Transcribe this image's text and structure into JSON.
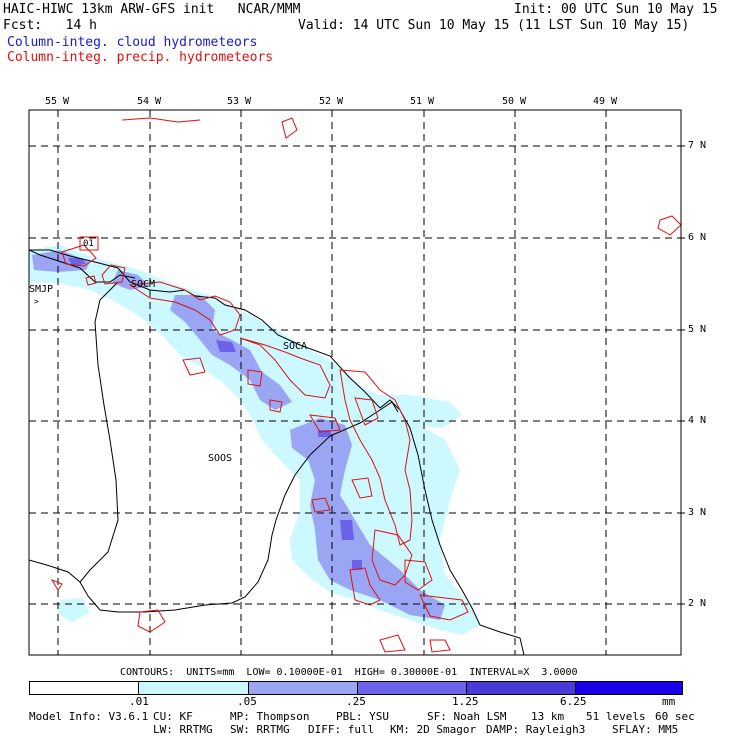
{
  "header": {
    "model": "HAIC-HIWC 13km ARW-GFS init   NCAR/MMM",
    "fcst": "Fcst:   14 h",
    "init": "Init: 00 UTC Sun 10 May 15",
    "valid": "Valid: 14 UTC Sun 10 May 15 (11 LST Sun 10 May 15)",
    "field_cloud": "Column-integ. cloud hydrometeors",
    "field_precip": "Column-integ. precip. hydrometeors"
  },
  "colors": {
    "cloud_text": "#1a1acc",
    "precip_text": "#e01010",
    "shade_1": "#ccf8ff",
    "shade_2": "#9aa6f4",
    "shade_3": "#6b64ea",
    "shade_4": "#4a3ad8",
    "shade_5": "#1a00e6",
    "contour": "#e01010",
    "station": "#c000c0"
  },
  "map": {
    "lon_labels": [
      "55 W",
      "54 W",
      "53 W",
      "52 W",
      "51 W",
      "50 W",
      "49 W"
    ],
    "lat_labels": [
      "7 N",
      "6 N",
      "5 N",
      "4 N",
      "3 N",
      "2 N"
    ],
    "stations": [
      "SMJP",
      "SOCA",
      "SOOS"
    ],
    "station_partial": "SOCM",
    "contour_label": "01"
  },
  "contours_line": "CONTOURS:  UNITS=mm  LOW= 0.10000E-01  HIGH= 0.30000E-01  INTERVAL=X  3.0000",
  "colorbar": {
    "ticks": [
      ".01",
      ".05",
      ".25",
      "1.25",
      "6.25"
    ],
    "units": "mm"
  },
  "footer": {
    "line1": [
      "Model Info: V3.6.1",
      "CU: KF",
      "MP: Thompson",
      "PBL: YSU",
      "SF: Noah LSM",
      "13 km",
      "51 levels",
      "60 sec"
    ],
    "line2": [
      "LW: RRTMG",
      "SW: RRTMG",
      "DIFF: full",
      "KM: 2D Smagor",
      "DAMP: Rayleigh3",
      "SFLAY: MM5"
    ]
  }
}
